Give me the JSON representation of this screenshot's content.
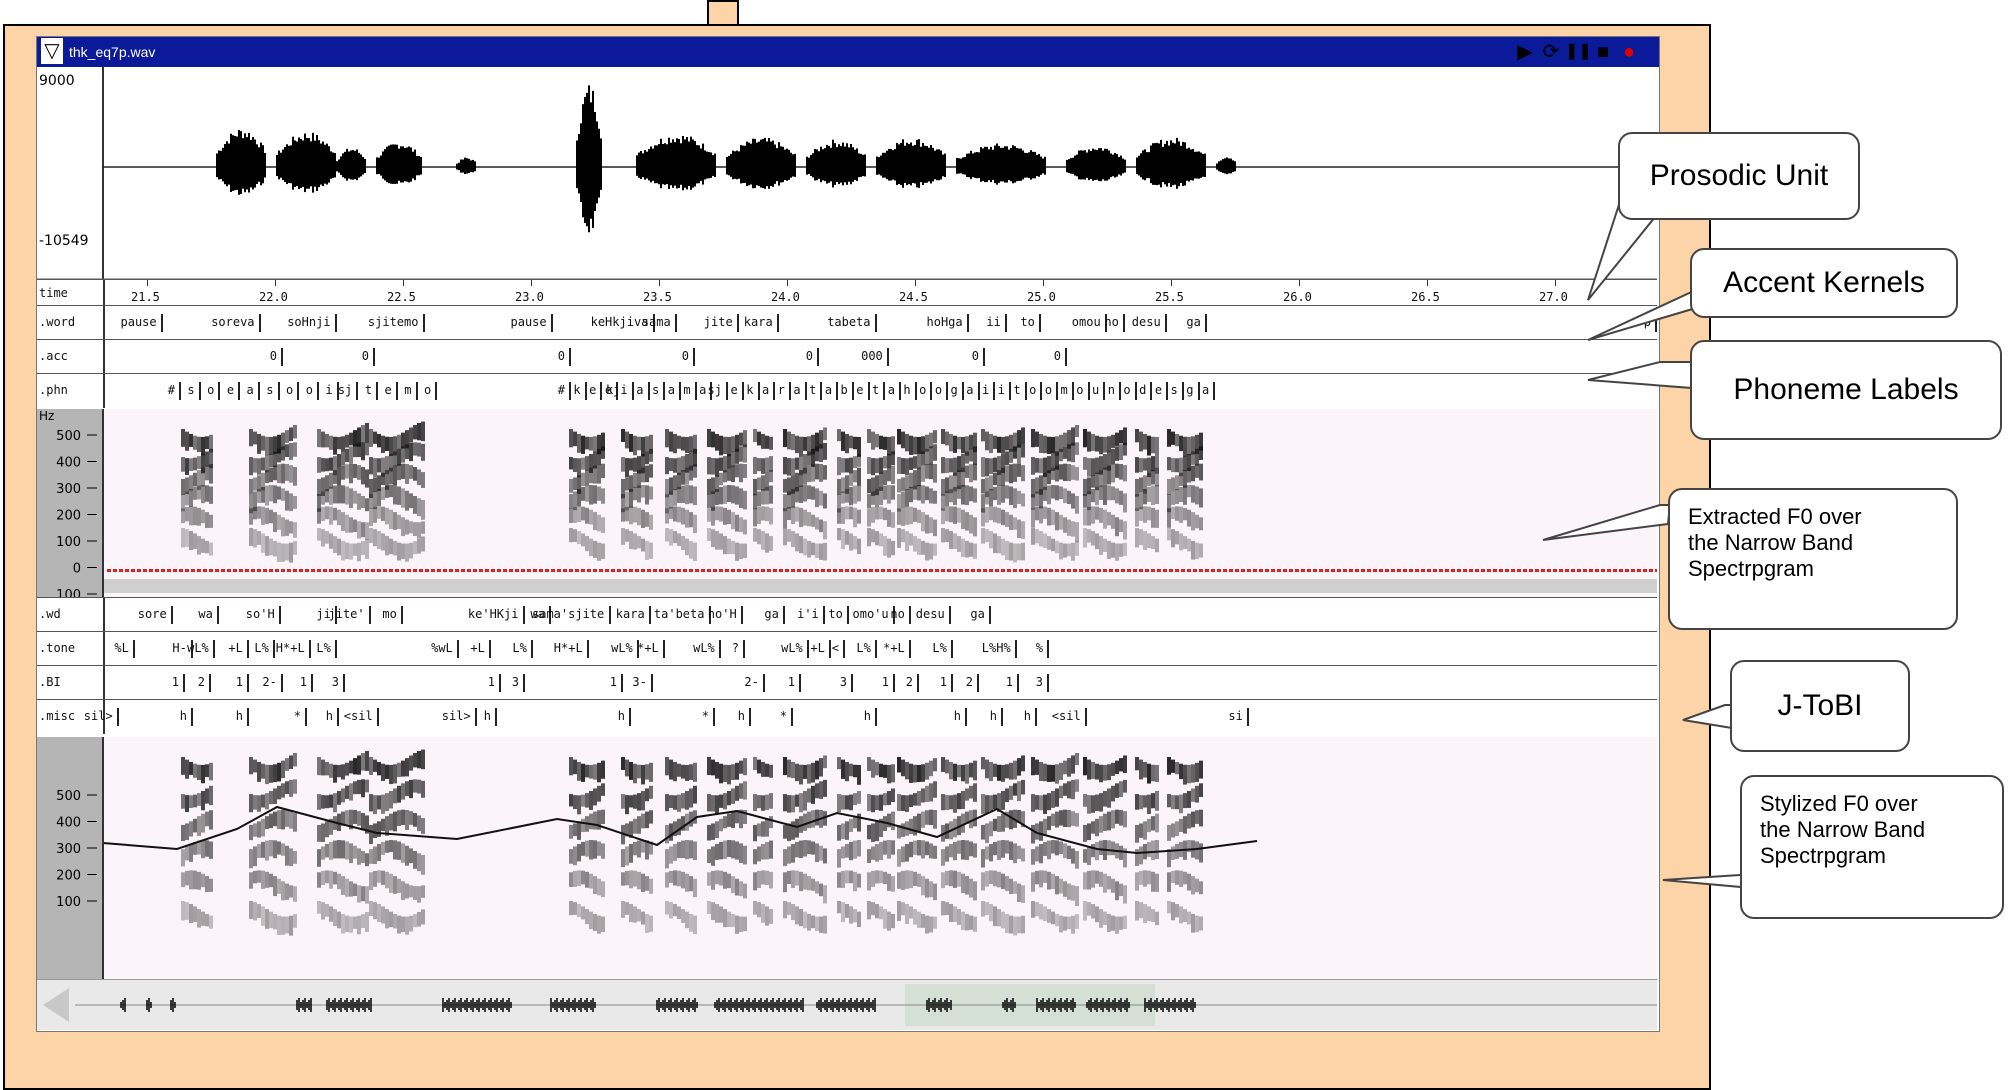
{
  "app": {
    "filename": "thk_eq7p.wav",
    "toolbar": {
      "play": "▶",
      "play_loop": "⟳",
      "pause": "❚❚",
      "stop": "■",
      "record": "●"
    }
  },
  "waveform": {
    "max_label": "9000",
    "min_label": "-10549"
  },
  "time_axis": {
    "name": "time",
    "ticks": [
      "21.5",
      "22.0",
      "22.5",
      "23.0",
      "23.5",
      "24.0",
      "24.5",
      "25.0",
      "25.5",
      "26.0",
      "26.5",
      "27.0",
      "27."
    ]
  },
  "tiers": {
    "word": {
      "name": ".word",
      "labels": [
        "pause",
        "soreva",
        "soHnji",
        "sjitemo",
        "pause",
        "keHkjiva",
        "sama",
        "jite",
        "kara",
        "tabeta",
        "hoHga",
        "ii",
        "to",
        "omou",
        "no",
        "desu",
        "ga",
        "p"
      ]
    },
    "acc": {
      "name": ".acc",
      "labels": [
        "0",
        "0",
        "0",
        "0",
        "0",
        "000",
        "0",
        "0"
      ]
    },
    "phn": {
      "name": ".phn",
      "labels": [
        "#",
        "s",
        "o",
        "e",
        "a",
        "s",
        "o",
        "o",
        "i",
        "sj",
        "t",
        "e",
        "m",
        "o",
        "#",
        "k",
        "e",
        "e",
        "kji",
        "a",
        "s",
        "a",
        "m",
        "a",
        "sj",
        "e",
        "k",
        "a",
        "r",
        "a",
        "t",
        "a",
        "b",
        "e",
        "t",
        "a",
        "h",
        "o",
        "o",
        "g",
        "a",
        "i",
        "i",
        "t",
        "o",
        "o",
        "m",
        "o",
        "u",
        "n",
        "o",
        "d",
        "e",
        "s",
        "g",
        "a"
      ]
    },
    "wd": {
      "name": ".wd",
      "labels": [
        "sore",
        "wa",
        "so'H",
        "ji",
        "jite'",
        "mo",
        "ke'HKji",
        "wa",
        "sama'sjite",
        "kara",
        "ta'beta",
        "ho'H",
        "ga",
        "i'i",
        "to",
        "omo'u",
        "no",
        "desu",
        "ga"
      ]
    },
    "tone": {
      "name": ".tone",
      "labels": [
        "%L",
        "H-",
        "wL%",
        "+L",
        "L%",
        "H*+L",
        "L%",
        "%wL",
        "+L",
        "L%",
        "H*+L",
        "wL%",
        "*+L",
        "wL%",
        "?",
        "wL%",
        "+L",
        "<",
        "L%",
        "*+L",
        "L%",
        "L%H%",
        "%"
      ]
    },
    "bi": {
      "name": ".BI",
      "labels": [
        "1",
        "2",
        "1",
        "2-",
        "1",
        "3",
        "1",
        "3",
        "1",
        "3-",
        "2-",
        "1",
        "3",
        "1",
        "2",
        "1",
        "2",
        "1",
        "3"
      ]
    },
    "misc": {
      "name": ".misc",
      "labels": [
        "sil>",
        "h",
        "h",
        "*",
        "h",
        "<sil",
        "sil>",
        "h",
        "h",
        "*",
        "h",
        "*",
        "h",
        "h",
        "h",
        "h",
        "<sil",
        "si"
      ]
    }
  },
  "spectrogram": {
    "hz_label": "Hz",
    "ticks1": [
      "500",
      "400",
      "300",
      "200",
      "100",
      "0",
      "100"
    ],
    "ticks2": [
      "500",
      "400",
      "300",
      "200",
      "100"
    ]
  },
  "callouts": {
    "prosodic_unit": "Prosodic Unit",
    "accent_kernels": "Accent Kernels",
    "phoneme_labels": "Phoneme Labels",
    "extracted_f0": [
      "Extracted F0 over",
      "the Narrow Band",
      "Spectrpgram"
    ],
    "jtobi": "J-ToBI",
    "stylized_f0": [
      "Stylized F0 over",
      "the Narrow Band",
      "Spectrpgram"
    ]
  },
  "colors": {
    "panel": "#fdd3a8",
    "titlebar": "#0a1a99",
    "f0": "#e02020",
    "record": "#e00000"
  }
}
